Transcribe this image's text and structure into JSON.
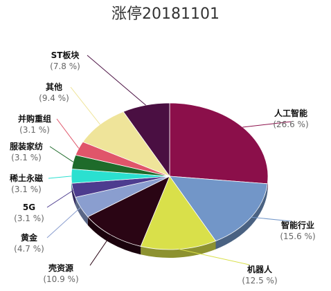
{
  "chart_data": {
    "type": "pie",
    "title": "涨停20181101",
    "slices": [
      {
        "name": "人工智能",
        "pct_label": "(26.6 %)",
        "value": 26.6,
        "color": "#8B0F4A"
      },
      {
        "name": "智能行业",
        "pct_label": "(15.6 %)",
        "value": 15.6,
        "color": "#7296C8"
      },
      {
        "name": "机器人",
        "pct_label": "(12.5 %)",
        "value": 12.5,
        "color": "#D9E04A"
      },
      {
        "name": "壳资源",
        "pct_label": "(10.9 %)",
        "value": 10.9,
        "color": "#2A0514"
      },
      {
        "name": "黄金",
        "pct_label": "(4.7 %)",
        "value": 4.7,
        "color": "#8A9ECF"
      },
      {
        "name": "5G",
        "pct_label": "(3.1 %)",
        "value": 3.1,
        "color": "#4D3C8F"
      },
      {
        "name": "稀土永磁",
        "pct_label": "(3.1 %)",
        "value": 3.1,
        "color": "#2BE0D0"
      },
      {
        "name": "服装家纺",
        "pct_label": "(3.1 %)",
        "value": 3.1,
        "color": "#1E6B2A"
      },
      {
        "name": "并购重组",
        "pct_label": "(3.1 %)",
        "value": 3.1,
        "color": "#E0556A"
      },
      {
        "name": "其他",
        "pct_label": "(9.4 %)",
        "value": 9.4,
        "color": "#EFE49A"
      },
      {
        "name": "ST板块",
        "pct_label": "(7.8 %)",
        "value": 7.8,
        "color": "#4A0F42"
      }
    ]
  }
}
